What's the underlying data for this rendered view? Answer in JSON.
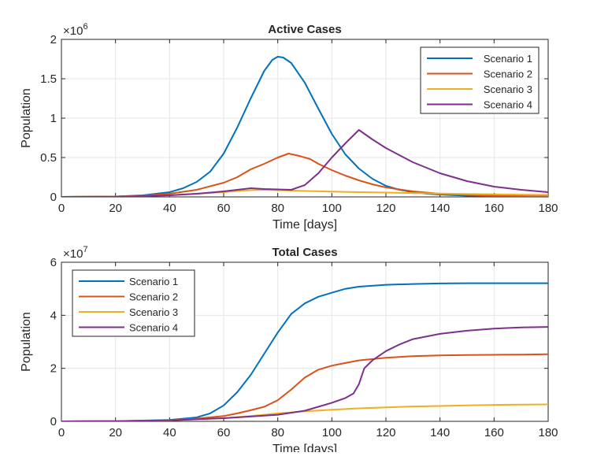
{
  "chart_data": [
    {
      "type": "line",
      "title": "Active Cases",
      "xlabel": "Time [days]",
      "ylabel": "Population",
      "exponent_label": "×10",
      "exponent_power": "6",
      "xlim": [
        0,
        180
      ],
      "ylim": [
        0,
        2
      ],
      "y_scale_factor": 1000000,
      "xticks": [
        0,
        20,
        40,
        60,
        80,
        100,
        120,
        140,
        160,
        180
      ],
      "yticks": [
        0,
        0.5,
        1,
        1.5,
        2
      ],
      "ytick_labels": [
        "0",
        "0.5",
        "1",
        "1.5",
        "2"
      ],
      "grid": true,
      "legend_position": "top-right",
      "series": [
        {
          "name": "Scenario 1",
          "color": "#0072BD",
          "x": [
            0,
            20,
            30,
            40,
            45,
            50,
            55,
            60,
            65,
            70,
            75,
            78,
            80,
            82,
            85,
            90,
            95,
            100,
            105,
            110,
            115,
            120,
            125,
            130,
            135,
            140,
            150,
            160,
            170,
            180
          ],
          "y": [
            0,
            0.005,
            0.02,
            0.06,
            0.11,
            0.19,
            0.32,
            0.55,
            0.88,
            1.25,
            1.6,
            1.74,
            1.78,
            1.77,
            1.7,
            1.45,
            1.12,
            0.8,
            0.54,
            0.36,
            0.23,
            0.14,
            0.09,
            0.06,
            0.04,
            0.03,
            0.015,
            0.008,
            0.004,
            0.002
          ]
        },
        {
          "name": "Scenario 2",
          "color": "#D95319",
          "x": [
            0,
            20,
            30,
            40,
            50,
            60,
            65,
            70,
            75,
            80,
            84,
            88,
            92,
            95,
            100,
            105,
            110,
            115,
            120,
            130,
            140,
            150,
            160,
            170,
            180
          ],
          "y": [
            0,
            0.005,
            0.015,
            0.04,
            0.09,
            0.18,
            0.25,
            0.35,
            0.42,
            0.5,
            0.55,
            0.52,
            0.48,
            0.42,
            0.34,
            0.27,
            0.21,
            0.16,
            0.12,
            0.07,
            0.04,
            0.025,
            0.015,
            0.01,
            0.006
          ]
        },
        {
          "name": "Scenario 3",
          "color": "#EDB120",
          "x": [
            0,
            20,
            40,
            50,
            60,
            65,
            70,
            75,
            80,
            85,
            90,
            100,
            110,
            120,
            140,
            160,
            180
          ],
          "y": [
            0,
            0.004,
            0.02,
            0.04,
            0.06,
            0.075,
            0.085,
            0.09,
            0.085,
            0.08,
            0.075,
            0.068,
            0.06,
            0.055,
            0.042,
            0.032,
            0.025
          ]
        },
        {
          "name": "Scenario 4",
          "color": "#7E2F8E",
          "x": [
            0,
            20,
            40,
            50,
            60,
            65,
            70,
            75,
            80,
            85,
            90,
            95,
            100,
            105,
            110,
            115,
            120,
            130,
            140,
            150,
            160,
            170,
            180
          ],
          "y": [
            0,
            0.003,
            0.02,
            0.04,
            0.07,
            0.09,
            0.11,
            0.1,
            0.095,
            0.09,
            0.15,
            0.3,
            0.5,
            0.68,
            0.85,
            0.73,
            0.62,
            0.44,
            0.3,
            0.2,
            0.13,
            0.09,
            0.06
          ]
        }
      ]
    },
    {
      "type": "line",
      "title": "Total Cases",
      "xlabel": "Time [days]",
      "ylabel": "Population",
      "exponent_label": "×10",
      "exponent_power": "7",
      "xlim": [
        0,
        180
      ],
      "ylim": [
        0,
        6
      ],
      "y_scale_factor": 10000000,
      "xticks": [
        0,
        20,
        40,
        60,
        80,
        100,
        120,
        140,
        160,
        180
      ],
      "yticks": [
        0,
        2,
        4,
        6
      ],
      "ytick_labels": [
        "0",
        "2",
        "4",
        "6"
      ],
      "grid": true,
      "legend_position": "top-left",
      "series": [
        {
          "name": "Scenario 1",
          "color": "#0072BD",
          "x": [
            0,
            20,
            40,
            50,
            55,
            60,
            65,
            70,
            75,
            80,
            85,
            90,
            95,
            100,
            105,
            110,
            120,
            130,
            140,
            150,
            160,
            170,
            180
          ],
          "y": [
            0,
            0.01,
            0.05,
            0.15,
            0.3,
            0.6,
            1.1,
            1.75,
            2.55,
            3.35,
            4.05,
            4.45,
            4.7,
            4.85,
            5.0,
            5.08,
            5.15,
            5.18,
            5.2,
            5.21,
            5.21,
            5.21,
            5.21
          ]
        },
        {
          "name": "Scenario 2",
          "color": "#D95319",
          "x": [
            0,
            20,
            40,
            50,
            60,
            65,
            70,
            75,
            80,
            85,
            90,
            95,
            100,
            105,
            110,
            120,
            130,
            140,
            150,
            160,
            170,
            180
          ],
          "y": [
            0,
            0.01,
            0.04,
            0.1,
            0.2,
            0.3,
            0.42,
            0.55,
            0.8,
            1.2,
            1.65,
            1.95,
            2.1,
            2.2,
            2.3,
            2.4,
            2.46,
            2.49,
            2.5,
            2.51,
            2.52,
            2.53
          ]
        },
        {
          "name": "Scenario 3",
          "color": "#EDB120",
          "x": [
            0,
            20,
            40,
            60,
            70,
            80,
            90,
            100,
            110,
            120,
            130,
            140,
            150,
            160,
            170,
            180
          ],
          "y": [
            0,
            0.01,
            0.04,
            0.12,
            0.2,
            0.3,
            0.38,
            0.44,
            0.49,
            0.53,
            0.56,
            0.58,
            0.6,
            0.62,
            0.63,
            0.64
          ]
        },
        {
          "name": "Scenario 4",
          "color": "#7E2F8E",
          "x": [
            0,
            20,
            40,
            60,
            70,
            80,
            90,
            95,
            100,
            105,
            108,
            110,
            112,
            115,
            120,
            125,
            130,
            140,
            150,
            160,
            170,
            180
          ],
          "y": [
            0,
            0.01,
            0.04,
            0.12,
            0.18,
            0.25,
            0.4,
            0.55,
            0.7,
            0.88,
            1.05,
            1.4,
            2.0,
            2.3,
            2.65,
            2.9,
            3.1,
            3.3,
            3.42,
            3.5,
            3.54,
            3.56
          ]
        }
      ]
    }
  ]
}
